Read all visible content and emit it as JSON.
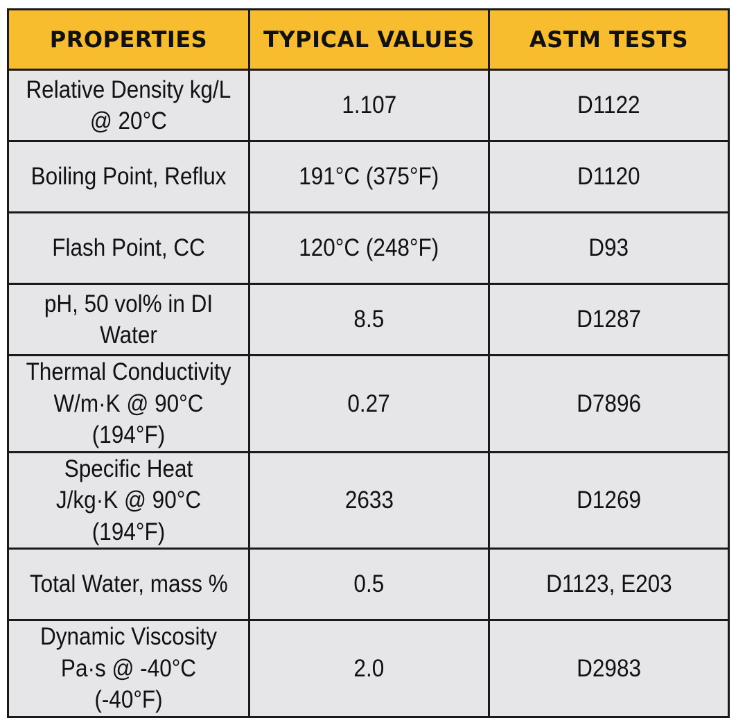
{
  "table": {
    "headers": [
      "PROPERTIES",
      "TYPICAL VALUES",
      "ASTM TESTS"
    ],
    "rows": [
      {
        "property": "Relative Density kg/L\n@ 20°C",
        "value": "1.107",
        "test": "D1122"
      },
      {
        "property": "Boiling Point, Reflux",
        "value": "191°C (375°F)",
        "test": "D1120"
      },
      {
        "property": "Flash Point, CC",
        "value": "120°C (248°F)",
        "test": "D93"
      },
      {
        "property": "pH, 50 vol% in DI Water",
        "value": "8.5",
        "test": "D1287"
      },
      {
        "property": "Thermal Conductivity\nW/m·K @ 90°C (194°F)",
        "value": "0.27",
        "test": "D7896"
      },
      {
        "property": "Specific Heat\nJ/kg·K @ 90°C (194°F)",
        "value": "2633",
        "test": "D1269"
      },
      {
        "property": "Total Water, mass %",
        "value": "0.5",
        "test": "D1123, E203"
      },
      {
        "property": "Dynamic Viscosity\nPa·s @ -40°C (-40°F)",
        "value": "2.0",
        "test": "D2983"
      }
    ]
  },
  "colors": {
    "header_bg": "#f7bd2e",
    "cell_bg": "#e6e6e8",
    "border": "#1a1a1a"
  }
}
